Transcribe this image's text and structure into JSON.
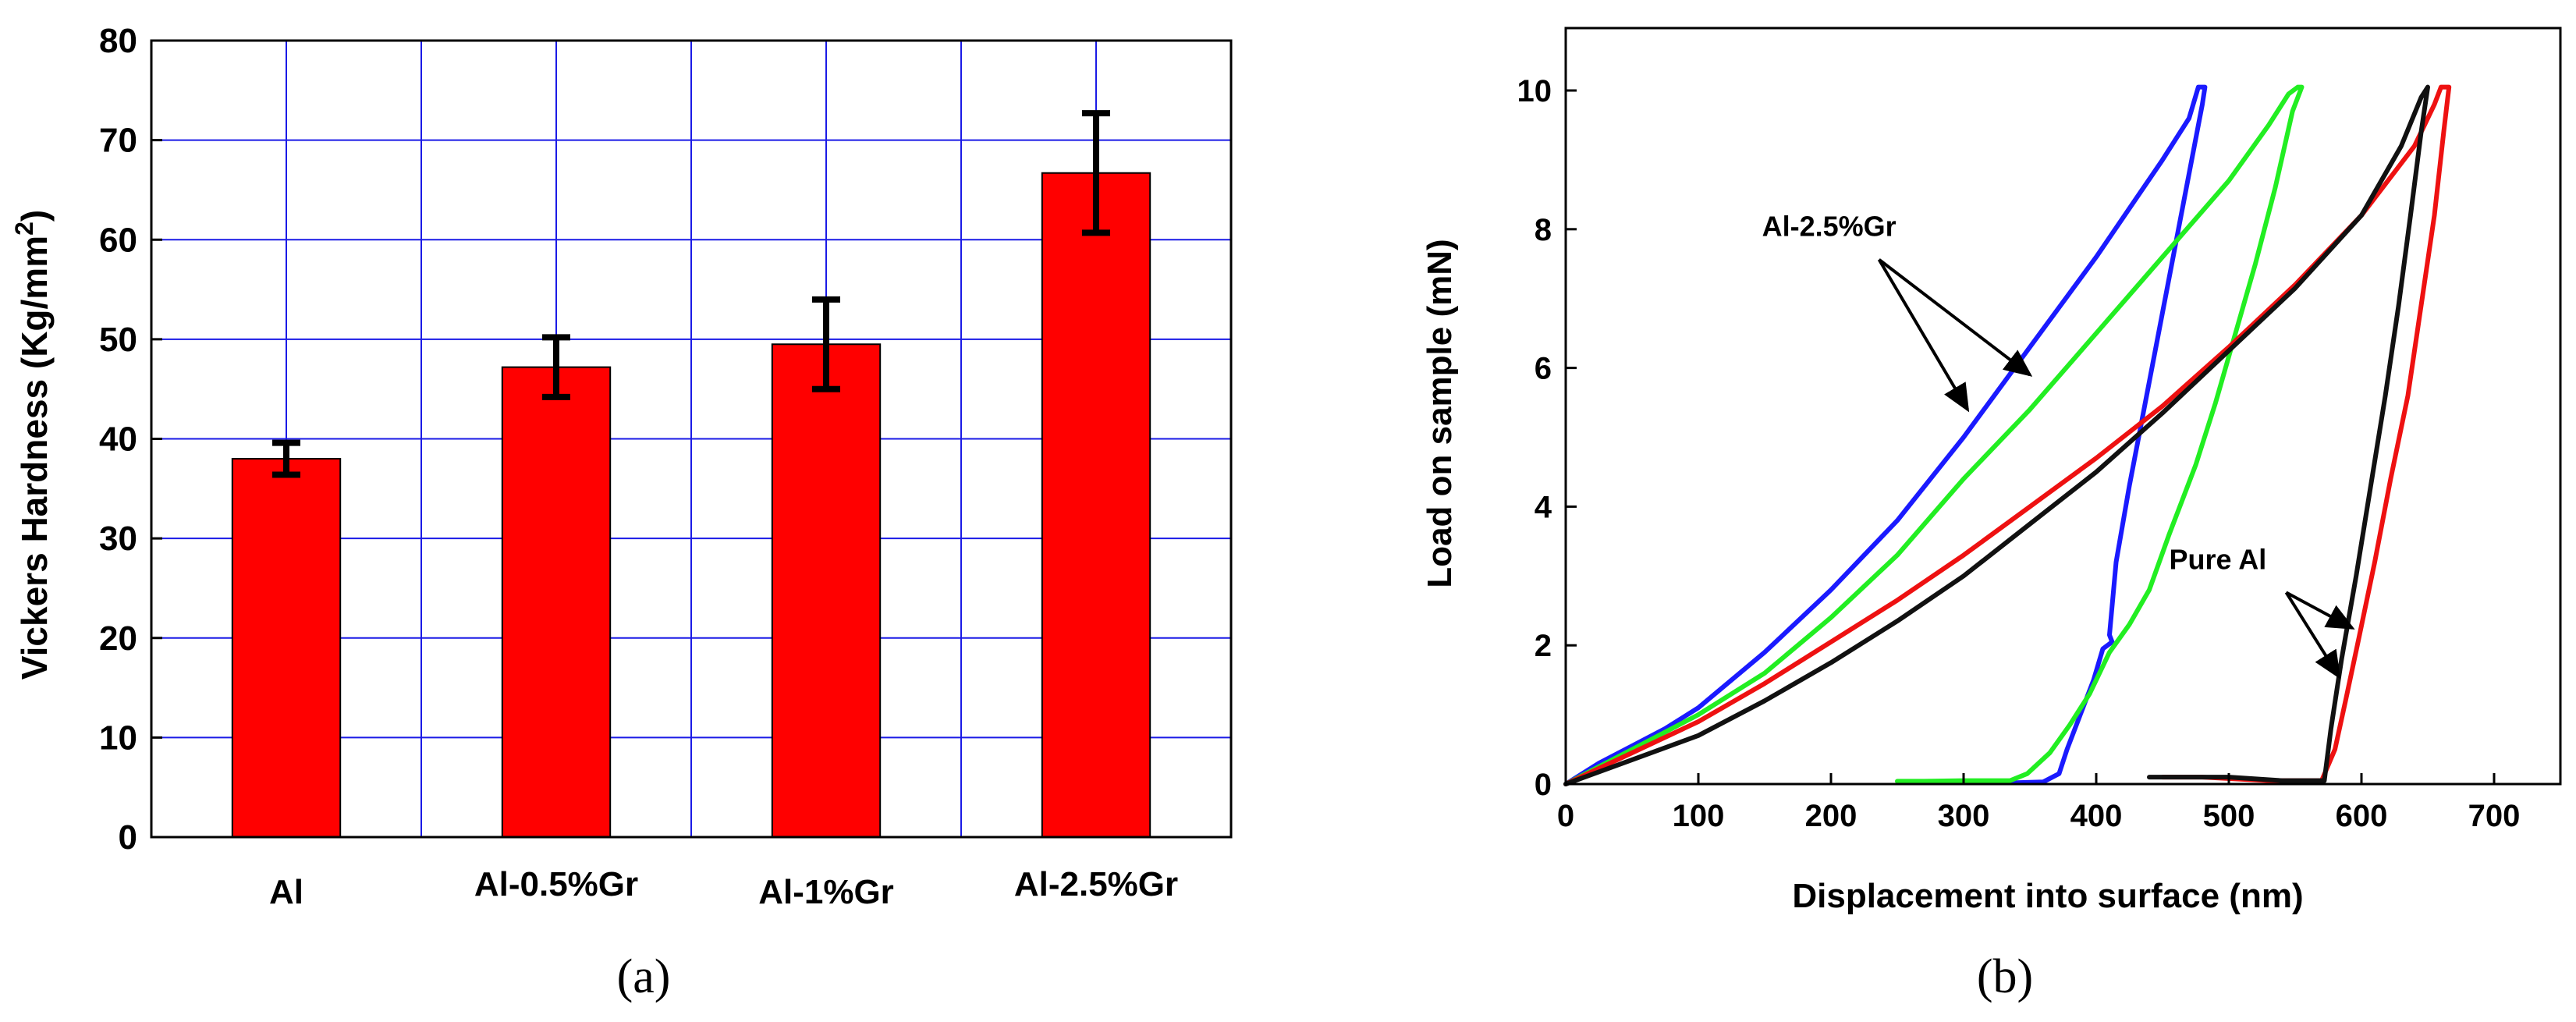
{
  "chart_data": [
    {
      "type": "bar",
      "panel_label": "(a)",
      "categories": [
        "Al",
        "Al-0.5%Gr",
        "Al-1%Gr",
        "Al-2.5%Gr"
      ],
      "values": [
        38,
        47.2,
        49.5,
        66.7
      ],
      "error": [
        1.6,
        3.0,
        4.5,
        6.0
      ],
      "ylabel_main": "Vickers Hardness (Kg/mm",
      "ylabel_sup": "2",
      "ylabel_close": ")",
      "xlabel": "",
      "ylim": [
        0,
        80
      ],
      "yticks": [
        0,
        10,
        20,
        30,
        40,
        50,
        60,
        70,
        80
      ],
      "grid": true,
      "colors": {
        "bar": "#ff0000",
        "grid": "#1a1ae6",
        "error": "#000000"
      }
    },
    {
      "type": "line",
      "panel_label": "(b)",
      "xlabel": "Displacement into surface (nm)",
      "ylabel": "Load on sample (mN)",
      "xlim": [
        0,
        750
      ],
      "ylim": [
        0,
        10.9
      ],
      "xticks": [
        0,
        100,
        200,
        300,
        400,
        500,
        600,
        700
      ],
      "yticks": [
        0,
        2,
        4,
        6,
        8,
        10
      ],
      "grid": false,
      "annotations": [
        {
          "text": "Al-2.5%Gr",
          "x": 148,
          "y": 7.9,
          "arrows_to": [
            [
              303,
              5.4
            ],
            [
              350,
              5.9
            ]
          ]
        },
        {
          "text": "Pure Al",
          "x": 455,
          "y": 3.1,
          "arrows_to": [
            [
              593,
              2.25
            ],
            [
              583,
              1.55
            ]
          ]
        }
      ],
      "series": [
        {
          "name": "blue",
          "color": "#1a1aff",
          "x": [
            0,
            25,
            50,
            75,
            100,
            150,
            200,
            250,
            300,
            350,
            400,
            450,
            470,
            477,
            482,
            480,
            470,
            460,
            450,
            440,
            425,
            415,
            410,
            412,
            405,
            398,
            388,
            378,
            372,
            360,
            340,
            320,
            305
          ],
          "y": [
            0,
            0.3,
            0.55,
            0.8,
            1.1,
            1.9,
            2.8,
            3.8,
            5.0,
            6.3,
            7.6,
            9.0,
            9.6,
            10.05,
            10.05,
            9.8,
            8.8,
            7.8,
            6.8,
            5.8,
            4.3,
            3.2,
            2.15,
            2.05,
            1.95,
            1.5,
            1.0,
            0.5,
            0.15,
            0.03,
            0.02,
            0.03,
            0.03
          ]
        },
        {
          "name": "green",
          "color": "#22ee22",
          "x": [
            0,
            50,
            100,
            150,
            200,
            250,
            300,
            350,
            400,
            450,
            500,
            530,
            545,
            552,
            555,
            548,
            535,
            520,
            505,
            490,
            475,
            455,
            440,
            425,
            410,
            395,
            380,
            365,
            348,
            335,
            300,
            270,
            250
          ],
          "y": [
            0,
            0.5,
            1.0,
            1.6,
            2.4,
            3.3,
            4.4,
            5.4,
            6.5,
            7.6,
            8.7,
            9.5,
            9.95,
            10.05,
            10.05,
            9.7,
            8.6,
            7.5,
            6.5,
            5.5,
            4.6,
            3.6,
            2.8,
            2.3,
            1.9,
            1.3,
            0.85,
            0.45,
            0.15,
            0.05,
            0.05,
            0.04,
            0.04
          ]
        },
        {
          "name": "red",
          "color": "#ee1111",
          "x": [
            0,
            50,
            100,
            150,
            200,
            250,
            300,
            350,
            400,
            450,
            500,
            550,
            600,
            640,
            655,
            660,
            666,
            662,
            655,
            645,
            635,
            622,
            610,
            598,
            588,
            580,
            570,
            530,
            480,
            450
          ],
          "y": [
            0,
            0.45,
            0.9,
            1.45,
            2.05,
            2.65,
            3.3,
            4.0,
            4.7,
            5.45,
            6.3,
            7.2,
            8.2,
            9.2,
            9.8,
            10.05,
            10.05,
            9.4,
            8.2,
            6.9,
            5.6,
            4.4,
            3.2,
            2.1,
            1.2,
            0.5,
            0.05,
            0.05,
            0.1,
            0.1
          ]
        },
        {
          "name": "black",
          "color": "#111111",
          "x": [
            0,
            50,
            100,
            150,
            200,
            250,
            300,
            350,
            400,
            450,
            500,
            550,
            600,
            630,
            645,
            650,
            645,
            637,
            628,
            618,
            607,
            596,
            585,
            577,
            572,
            540,
            500,
            460,
            440
          ],
          "y": [
            0,
            0.35,
            0.7,
            1.2,
            1.75,
            2.35,
            3.0,
            3.75,
            4.5,
            5.35,
            6.25,
            7.15,
            8.2,
            9.2,
            9.9,
            10.05,
            9.4,
            8.2,
            6.9,
            5.6,
            4.3,
            3.0,
            1.8,
            0.8,
            0.05,
            0.05,
            0.1,
            0.1,
            0.1
          ]
        }
      ]
    }
  ]
}
